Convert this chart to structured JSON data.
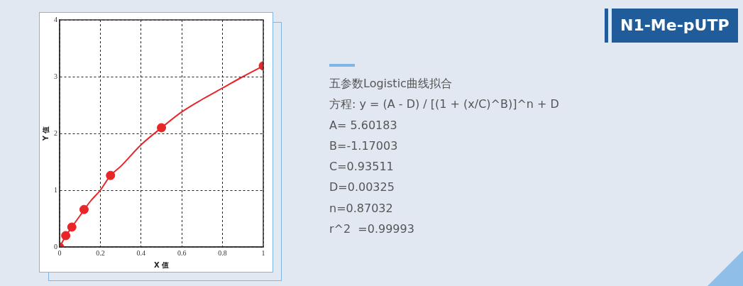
{
  "chart_data": {
    "type": "scatter",
    "title": "N1-Me-pUTP",
    "xlabel": "X 值",
    "ylabel": "Y 值",
    "xlim": [
      0,
      1
    ],
    "xticks": [
      0,
      0.2,
      0.4,
      0.6,
      0.8,
      1
    ],
    "ylim": [
      0,
      4
    ],
    "yticks": [
      0,
      1,
      2,
      3,
      4
    ],
    "grid": true,
    "legend": false,
    "series": [
      {
        "type": "line",
        "color": "#e8262a",
        "marker": "none",
        "line_style": "solid",
        "x": [
          0,
          0.03,
          0.06,
          0.1,
          0.15,
          0.2,
          0.25,
          0.3,
          0.4,
          0.5,
          0.6,
          0.7,
          0.8,
          0.9,
          1
        ],
        "values": [
          0,
          0.19,
          0.35,
          0.55,
          0.8,
          1.0,
          1.26,
          1.42,
          1.8,
          2.1,
          2.38,
          2.6,
          2.8,
          3.0,
          3.19
        ]
      },
      {
        "type": "scatter",
        "color": "#e8262a",
        "marker": "circle",
        "x": [
          0,
          0.03,
          0.06,
          0.12,
          0.25,
          0.5,
          1
        ],
        "values": [
          0,
          0.2,
          0.35,
          0.66,
          1.26,
          2.1,
          3.19
        ]
      }
    ],
    "annotations": [
      "五参数Logistic曲线拟合",
      "方程: y = (A - D) / [(1 + (x/C)^B)]^n + D",
      "A= 5.60183",
      "B=-1.17003",
      "C=0.93511",
      "D=0.00325",
      "n=0.87032",
      "r^2  =0.99993"
    ]
  }
}
